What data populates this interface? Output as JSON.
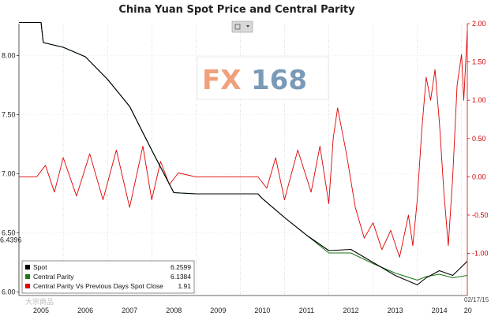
{
  "chart_data": {
    "type": "line",
    "title": "China Yuan Spot Price and Central Parity",
    "y_left": {
      "ticks": [
        "8.00",
        "7.50",
        "7.00",
        "6.50",
        "6.00"
      ],
      "ylim": [
        5.97,
        8.27
      ],
      "marker": "6.4396"
    },
    "y_right": {
      "ticks": [
        "2.00",
        "1.50",
        "1.00",
        "0.50",
        "0.00",
        "-0.50",
        "-1.00"
      ],
      "ylim": [
        -1.55,
        2.0
      ]
    },
    "x_ticks": [
      "2005",
      "2006",
      "2007",
      "2008",
      "2009",
      "2010",
      "2011",
      "2012",
      "2013",
      "2014",
      "20"
    ],
    "x_range": [
      "2005",
      "2015-02-17"
    ],
    "date_label": "02/17/15",
    "grid": "vertical",
    "legend_position": "bottom-left",
    "legend": [
      {
        "name": "Spot",
        "value": "6.2599",
        "color": "#000000"
      },
      {
        "name": "Central Parity",
        "value": "6.1384",
        "color": "#1a7a1a"
      },
      {
        "name": "Central Parity Vs Previous Days Spot Close",
        "value": "1.91",
        "color": "#e00000"
      }
    ],
    "series": [
      {
        "name": "Spot",
        "axis": "left",
        "color": "#000000",
        "x": [
          2005.0,
          2005.5,
          2005.55,
          2006.0,
          2006.5,
          2007.0,
          2007.5,
          2008.0,
          2008.5,
          2009.0,
          2009.5,
          2010.0,
          2010.4,
          2010.5,
          2011.0,
          2011.5,
          2012.0,
          2012.5,
          2013.0,
          2013.5,
          2014.0,
          2014.2,
          2014.5,
          2014.8,
          2015.13
        ],
        "y": [
          8.28,
          8.28,
          8.11,
          8.07,
          7.99,
          7.8,
          7.57,
          7.2,
          6.84,
          6.83,
          6.83,
          6.83,
          6.83,
          6.79,
          6.63,
          6.48,
          6.35,
          6.36,
          6.25,
          6.14,
          6.06,
          6.12,
          6.18,
          6.14,
          6.26
        ]
      },
      {
        "name": "Central Parity",
        "axis": "left",
        "color": "#1a7a1a",
        "x": [
          2005.0,
          2005.5,
          2005.55,
          2006.0,
          2006.5,
          2007.0,
          2007.5,
          2008.0,
          2008.5,
          2009.0,
          2009.5,
          2010.0,
          2010.4,
          2010.5,
          2011.0,
          2011.5,
          2012.0,
          2012.5,
          2013.0,
          2013.5,
          2014.0,
          2014.2,
          2014.5,
          2014.8,
          2015.13
        ],
        "y": [
          8.28,
          8.28,
          8.11,
          8.07,
          7.99,
          7.8,
          7.57,
          7.2,
          6.84,
          6.83,
          6.83,
          6.83,
          6.83,
          6.79,
          6.63,
          6.48,
          6.33,
          6.33,
          6.24,
          6.16,
          6.1,
          6.13,
          6.15,
          6.12,
          6.14
        ]
      },
      {
        "name": "Central Parity Vs Previous Days Spot Close",
        "axis": "right",
        "color": "#e00000",
        "x": [
          2005.0,
          2005.4,
          2005.6,
          2005.8,
          2006.0,
          2006.3,
          2006.6,
          2006.9,
          2007.2,
          2007.5,
          2007.8,
          2008.0,
          2008.2,
          2008.4,
          2008.6,
          2009.0,
          2009.5,
          2010.0,
          2010.4,
          2010.6,
          2010.8,
          2011.0,
          2011.3,
          2011.6,
          2011.8,
          2012.0,
          2012.1,
          2012.2,
          2012.4,
          2012.6,
          2012.8,
          2013.0,
          2013.2,
          2013.4,
          2013.6,
          2013.8,
          2013.9,
          2014.0,
          2014.1,
          2014.2,
          2014.3,
          2014.4,
          2014.5,
          2014.6,
          2014.7,
          2014.8,
          2014.9,
          2015.0,
          2015.05,
          2015.13
        ],
        "y": [
          0.0,
          0.0,
          0.15,
          -0.2,
          0.25,
          -0.25,
          0.3,
          -0.3,
          0.35,
          -0.4,
          0.4,
          -0.3,
          0.2,
          -0.1,
          0.05,
          0.0,
          0.0,
          0.0,
          0.0,
          -0.15,
          0.25,
          -0.3,
          0.35,
          -0.2,
          0.4,
          -0.35,
          0.5,
          0.9,
          0.3,
          -0.4,
          -0.8,
          -0.6,
          -0.95,
          -0.7,
          -1.05,
          -0.5,
          -0.9,
          -0.3,
          0.6,
          1.3,
          1.0,
          1.4,
          0.7,
          -0.2,
          -0.9,
          0.0,
          1.2,
          1.6,
          1.0,
          1.91
        ]
      }
    ]
  },
  "legend_title_spot": "Spot",
  "legend_title_cp": "Central Parity",
  "legend_title_diff": "Central Parity Vs Previous Days Spot Close",
  "legend_value_spot": "6.2599",
  "legend_value_cp": "6.1384",
  "legend_value_diff": "1.91",
  "logo_fx": "FX",
  "logo_num": "168",
  "watermark": "大宗商品"
}
